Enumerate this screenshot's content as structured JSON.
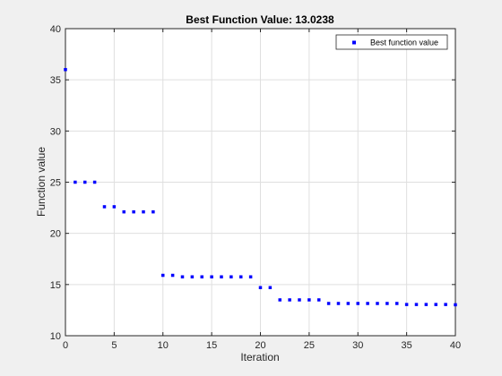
{
  "chart_data": {
    "type": "scatter",
    "title": "Best Function Value: 13.0238",
    "xlabel": "Iteration",
    "ylabel": "Function value",
    "xlim": [
      0,
      40
    ],
    "ylim": [
      10,
      40
    ],
    "xticks": [
      0,
      5,
      10,
      15,
      20,
      25,
      30,
      35,
      40
    ],
    "yticks": [
      10,
      15,
      20,
      25,
      30,
      35,
      40
    ],
    "grid": true,
    "legend_position": "top-right",
    "marker_color": "#0000ff",
    "series": [
      {
        "name": "Best function value",
        "x": [
          0,
          1,
          2,
          3,
          4,
          5,
          6,
          7,
          8,
          9,
          10,
          11,
          12,
          13,
          14,
          15,
          16,
          17,
          18,
          19,
          20,
          21,
          22,
          23,
          24,
          25,
          26,
          27,
          28,
          29,
          30,
          31,
          32,
          33,
          34,
          35,
          36,
          37,
          38,
          39,
          40
        ],
        "y": [
          36.0,
          25.0,
          25.0,
          25.0,
          22.6,
          22.6,
          22.1,
          22.1,
          22.1,
          22.1,
          15.9,
          15.9,
          15.75,
          15.75,
          15.75,
          15.75,
          15.75,
          15.75,
          15.75,
          15.75,
          14.7,
          14.7,
          13.5,
          13.5,
          13.5,
          13.5,
          13.5,
          13.15,
          13.15,
          13.15,
          13.15,
          13.15,
          13.15,
          13.15,
          13.15,
          13.05,
          13.05,
          13.05,
          13.05,
          13.05,
          13.0238
        ]
      }
    ]
  }
}
